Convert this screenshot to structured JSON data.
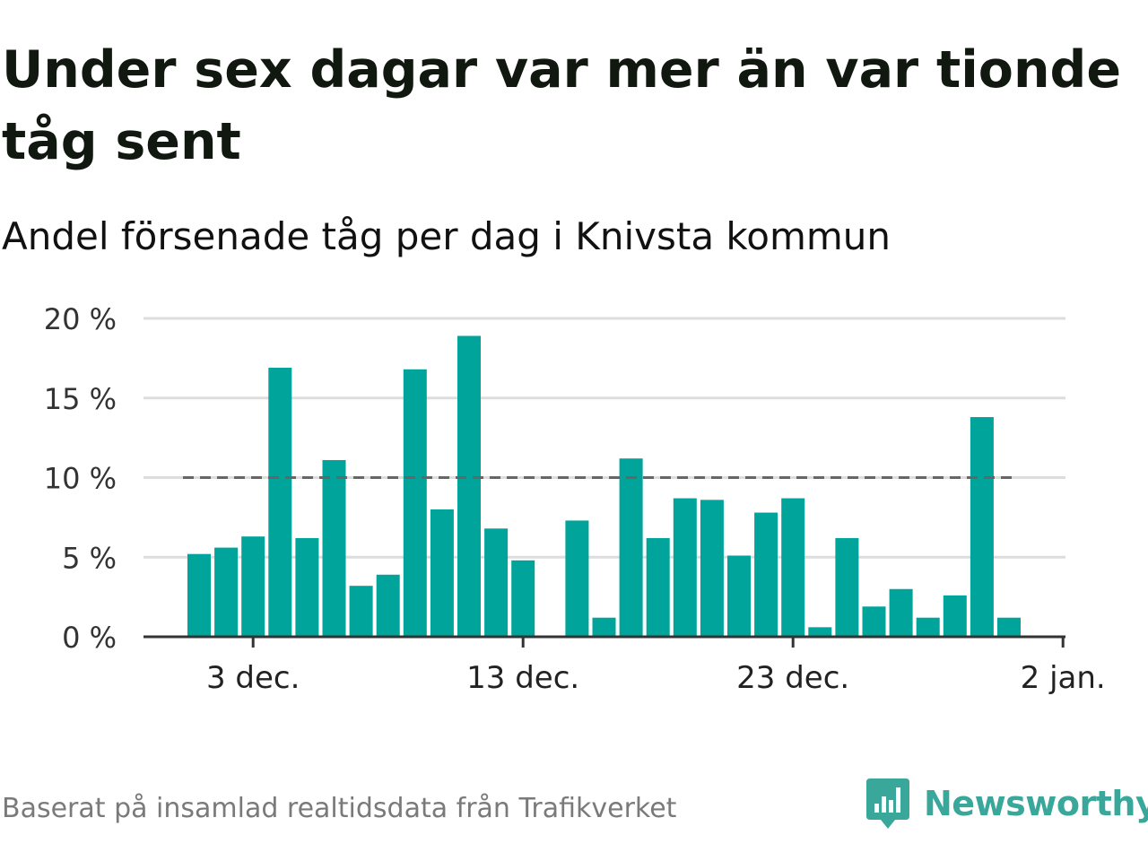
{
  "header": {
    "title": "Under sex dagar var mer än var tionde tåg sent",
    "subtitle": "Andel försenade tåg per dag i Knivsta kommun"
  },
  "footer": {
    "source": "Baserat på insamlad realtidsdata från Trafikverket",
    "brand": "Newsworthy"
  },
  "colors": {
    "bar": "#00a49a",
    "reference_line": "#666666",
    "grid": "#dddddd",
    "axis": "#333333",
    "brand": "#3aa79b"
  },
  "icons": {
    "brand_logo": "newsworthy-logo-icon"
  },
  "chart_data": {
    "type": "bar",
    "x": [
      "2023-12-01",
      "2023-12-02",
      "2023-12-03",
      "2023-12-04",
      "2023-12-05",
      "2023-12-06",
      "2023-12-07",
      "2023-12-08",
      "2023-12-09",
      "2023-12-10",
      "2023-12-11",
      "2023-12-12",
      "2023-12-13",
      "2023-12-14",
      "2023-12-15",
      "2023-12-16",
      "2023-12-17",
      "2023-12-18",
      "2023-12-19",
      "2023-12-20",
      "2023-12-21",
      "2023-12-22",
      "2023-12-23",
      "2023-12-24",
      "2023-12-25",
      "2023-12-26",
      "2023-12-27",
      "2023-12-28",
      "2023-12-29",
      "2023-12-30",
      "2023-12-31"
    ],
    "values": [
      5.2,
      5.6,
      6.3,
      16.9,
      6.2,
      11.1,
      3.2,
      3.9,
      16.8,
      8.0,
      18.9,
      6.8,
      4.8,
      null,
      7.3,
      1.2,
      11.2,
      6.2,
      8.7,
      8.6,
      5.1,
      7.8,
      8.7,
      0.6,
      6.2,
      1.9,
      3.0,
      1.2,
      2.6,
      13.8,
      1.2
    ],
    "ylim": [
      0,
      20
    ],
    "yticks": [
      {
        "value": 0,
        "label": "0 %"
      },
      {
        "value": 5,
        "label": "5 %"
      },
      {
        "value": 10,
        "label": "10 %"
      },
      {
        "value": 15,
        "label": "15 %"
      },
      {
        "value": 20,
        "label": "20 %"
      }
    ],
    "xticks": [
      {
        "value": "2023-12-03",
        "label": "3 dec."
      },
      {
        "value": "2023-12-13",
        "label": "13 dec."
      },
      {
        "value": "2023-12-23",
        "label": "23 dec."
      },
      {
        "value": "2024-01-02",
        "label": "2 jan."
      }
    ],
    "reference_line": {
      "value": 10,
      "style": "dashed"
    },
    "grid": true,
    "legend": "none"
  }
}
